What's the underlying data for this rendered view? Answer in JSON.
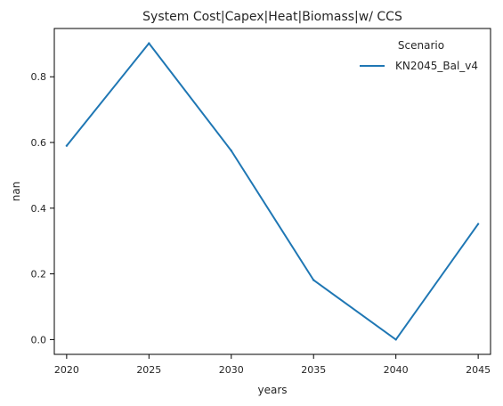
{
  "chart_data": {
    "type": "line",
    "title": "System Cost|Capex|Heat|Biomass|w/ CCS",
    "xlabel": "years",
    "ylabel": "nan",
    "x": [
      2020,
      2025,
      2030,
      2035,
      2040,
      2045
    ],
    "x_ticks": [
      "2020",
      "2025",
      "2030",
      "2035",
      "2040",
      "2045"
    ],
    "y_ticks": [
      "0.0",
      "0.2",
      "0.4",
      "0.6",
      "0.8"
    ],
    "xlim": [
      2019.25,
      2045.75
    ],
    "ylim": [
      -0.045,
      0.947
    ],
    "grid": false,
    "legend": {
      "title": "Scenario",
      "placement": "top-right"
    },
    "series": [
      {
        "name": "KN2045_Bal_v4",
        "color": "#1f77b4",
        "values": [
          0.59,
          0.902,
          0.575,
          0.181,
          0.0,
          0.352
        ]
      }
    ]
  }
}
